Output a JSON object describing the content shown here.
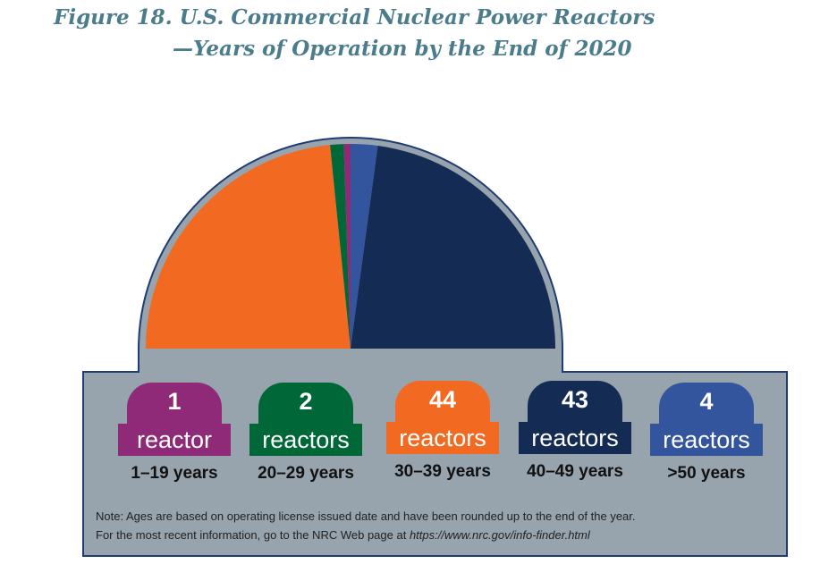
{
  "title": {
    "line1": "Figure 18. U.S. Commercial Nuclear Power Reactors",
    "line2": "—Years of Operation by the End of 2020"
  },
  "chart_data": {
    "type": "pie",
    "shape": "half-pie",
    "categories": [
      "1–19 years",
      "20–29 years",
      "30–39 years",
      "40–49 years",
      ">50 years"
    ],
    "values": [
      1,
      2,
      44,
      43,
      4
    ],
    "value_labels": [
      "1",
      "2",
      "44",
      "43",
      "4"
    ],
    "unit_labels": [
      "reactor",
      "reactors",
      "reactors",
      "reactors",
      "reactors"
    ],
    "colors": [
      "#8e2a78",
      "#006838",
      "#f26a21",
      "#142b54",
      "#33559e"
    ],
    "slice_order": [
      2,
      1,
      0,
      4,
      3
    ],
    "background_color": "#97a3ad",
    "outline_color": "#1f3b73"
  },
  "note": {
    "line1": "Note: Ages are based on operating license issued date and have been rounded up to the end of the year.",
    "line2_prefix": "For the most recent information, go to the NRC Web page at ",
    "line2_url": "https://www.nrc.gov/info-finder.html"
  }
}
